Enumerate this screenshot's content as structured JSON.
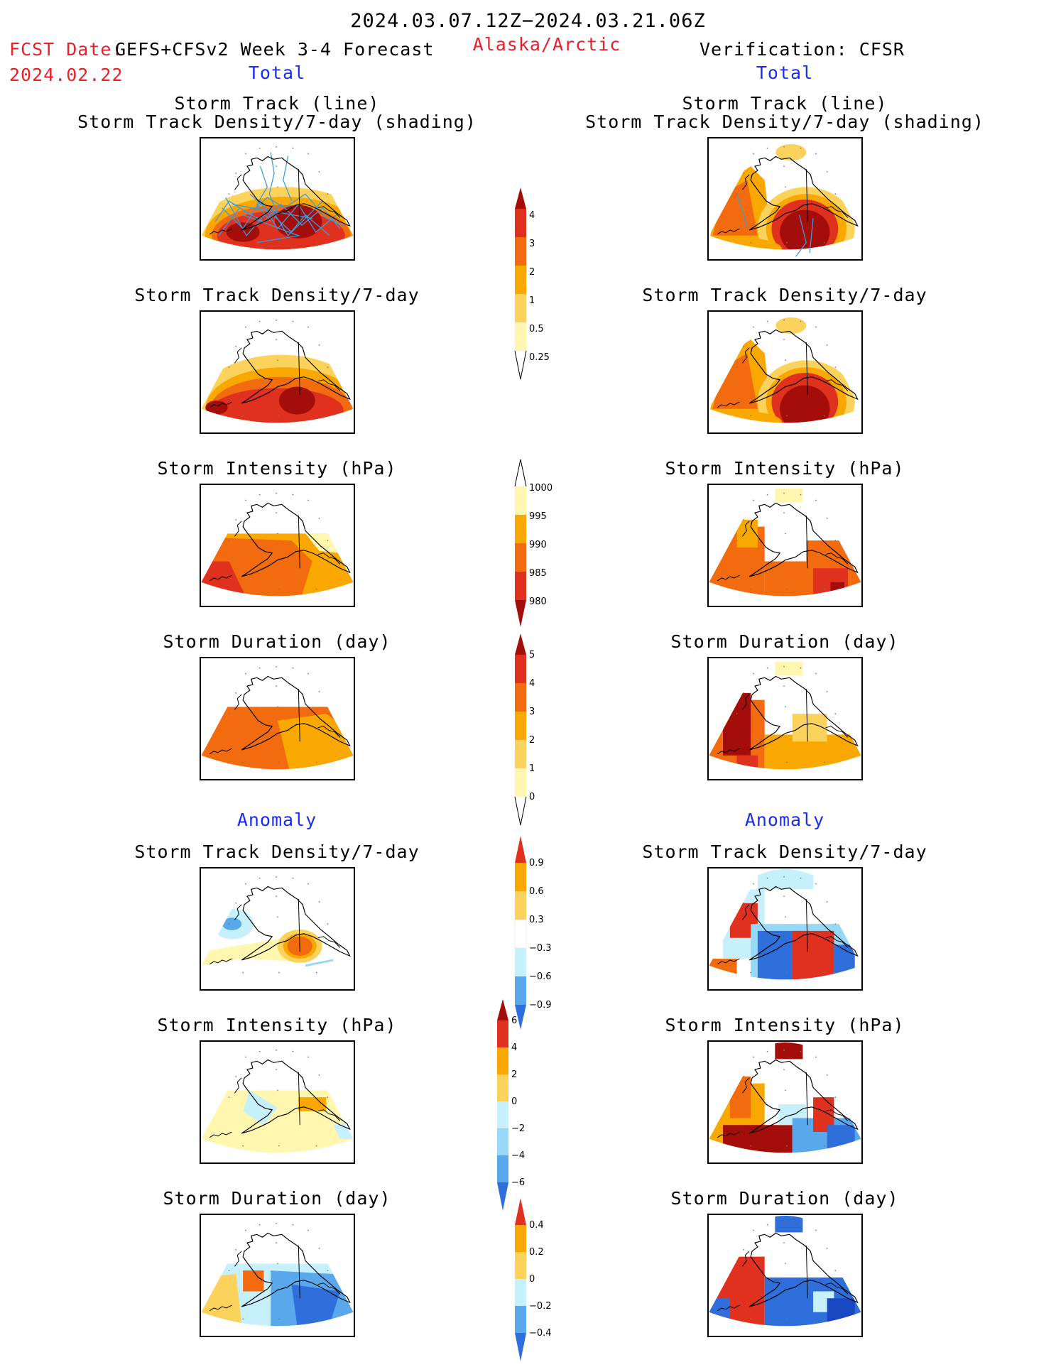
{
  "header": {
    "period": "2024.03.07.12Z−2024.03.21.06Z",
    "fcst_label": "FCST Date:",
    "fcst_model": "GEFS+CFSv2 Week 3-4 Forecast",
    "fcst_date": "2024.02.22",
    "region": "Alaska/Arctic",
    "verification": "Verification: CFSR"
  },
  "sections": {
    "total_left": "Total",
    "total_right": "Total",
    "anomaly_left": "Anomaly",
    "anomaly_right": "Anomaly"
  },
  "titles": {
    "track_line": "Storm Track (line)",
    "track_shading": "Storm Track Density/7-day (shading)",
    "density": "Storm Track Density/7-day",
    "intensity": "Storm Intensity (hPa)",
    "duration": "Storm Duration (day)"
  },
  "colorbars": {
    "density": [
      "4",
      "3",
      "2",
      "1",
      "0.5",
      "0.25"
    ],
    "intensity": [
      "1000",
      "995",
      "990",
      "985",
      "980"
    ],
    "duration": [
      "5",
      "4",
      "3",
      "2",
      "1",
      "0"
    ],
    "density_anom": [
      "0.9",
      "0.6",
      "0.3",
      "−0.3",
      "−0.6",
      "−0.9"
    ],
    "intensity_anom": [
      "6",
      "4",
      "2",
      "0",
      "−2",
      "−4",
      "−6"
    ],
    "duration_anom": [
      "0.4",
      "0.2",
      "0",
      "−0.2",
      "−0.4"
    ]
  },
  "colors": {
    "label_red": "#e8202a",
    "label_blue": "#1a2cf0",
    "warm": [
      "#fff7b0",
      "#fbd35c",
      "#f8a800",
      "#f26b0f",
      "#e0301e",
      "#a30e0a"
    ],
    "cool": [
      "#c6f0fb",
      "#96d8f5",
      "#5aa8ec",
      "#2e6fdc",
      "#1a48c2"
    ]
  }
}
